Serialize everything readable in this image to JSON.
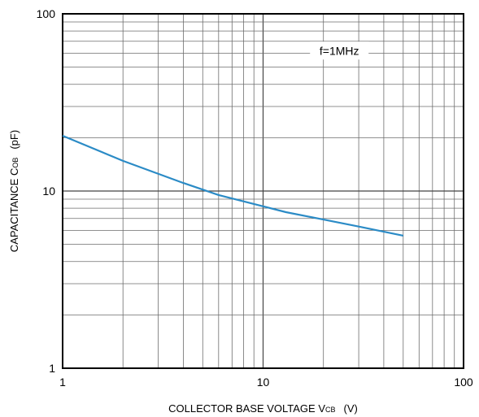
{
  "chart_data": {
    "type": "line",
    "title": "",
    "x_scale": "log",
    "y_scale": "log",
    "xlim": [
      1,
      100
    ],
    "ylim": [
      1,
      100
    ],
    "grid": true,
    "xlabel": {
      "main": "COLLECTOR  BASE  VOLTAGE  V",
      "sub": "CB",
      "unit": "(V)"
    },
    "ylabel": {
      "main": "CAPACITANCE  C",
      "sub": "OB",
      "unit": "(pF)"
    },
    "x_ticks": [
      {
        "value": 1,
        "label": "1"
      },
      {
        "value": 10,
        "label": "10"
      },
      {
        "value": 100,
        "label": "100"
      }
    ],
    "y_ticks": [
      {
        "value": 1,
        "label": "1"
      },
      {
        "value": 10,
        "label": "10"
      },
      {
        "value": 100,
        "label": "100"
      }
    ],
    "annotation": {
      "text": "f=1MHz",
      "x": 24,
      "y": 62
    },
    "series": [
      {
        "color": "#2b8bc6",
        "points": [
          {
            "x": 1,
            "y": 20.5
          },
          {
            "x": 2,
            "y": 14.8
          },
          {
            "x": 4,
            "y": 11.1
          },
          {
            "x": 6,
            "y": 9.5
          },
          {
            "x": 10,
            "y": 8.2
          },
          {
            "x": 13,
            "y": 7.6
          },
          {
            "x": 20,
            "y": 6.9
          },
          {
            "x": 30,
            "y": 6.3
          },
          {
            "x": 50,
            "y": 5.6
          }
        ]
      }
    ]
  }
}
